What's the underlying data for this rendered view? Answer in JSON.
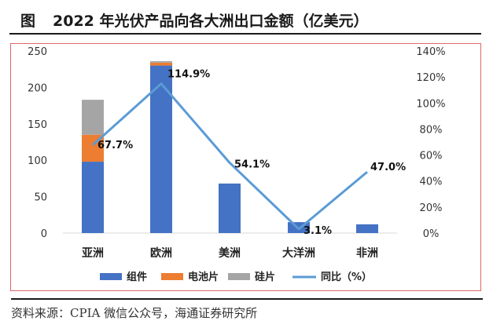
{
  "figure": {
    "label": "图",
    "title": "2022 年光伏产品向各大洲出口金额（亿美元）",
    "source": "资料来源：CPIA 微信公众号，海通证券研究所"
  },
  "chart_data": {
    "type": "bar",
    "stacked": true,
    "categories": [
      "亚洲",
      "欧洲",
      "美洲",
      "大洋洲",
      "非洲"
    ],
    "series": [
      {
        "name": "组件",
        "color": "#4472c4",
        "values": [
          98,
          230,
          68,
          15,
          12
        ]
      },
      {
        "name": "电池片",
        "color": "#ed7d31",
        "values": [
          37,
          4,
          0,
          0,
          0
        ]
      },
      {
        "name": "硅片",
        "color": "#a5a5a5",
        "values": [
          48,
          2,
          0,
          0,
          0
        ]
      }
    ],
    "line_series": {
      "name": "同比（%）",
      "color": "#5b9bd5",
      "values": [
        67.7,
        114.9,
        54.1,
        3.1,
        47.0
      ],
      "labels": [
        "67.7%",
        "114.9%",
        "54.1%",
        "3.1%",
        "47.0%"
      ]
    },
    "y_left": {
      "min": 0,
      "max": 250,
      "ticks": [
        "0",
        "50",
        "100",
        "150",
        "200",
        "250"
      ]
    },
    "y_right": {
      "min": 0,
      "max": 140,
      "ticks": [
        "0%",
        "20%",
        "40%",
        "60%",
        "80%",
        "100%",
        "120%",
        "140%"
      ]
    },
    "grid": false,
    "legend_position": "bottom"
  }
}
